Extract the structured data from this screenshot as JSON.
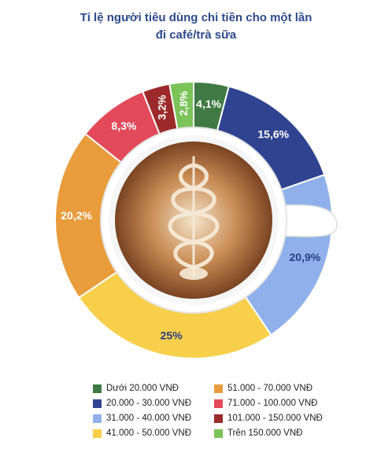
{
  "chart_data": {
    "type": "pie",
    "title_line1": "Tỉ lệ người tiêu dùng chi tiền cho một lần",
    "title_line2": "đi café/trà sữa",
    "slices": [
      {
        "label": "Dưới 20.000 VNĐ",
        "value": 4.1,
        "value_label": "4,1%",
        "color": "#3f7a44",
        "label_color": "#ffffff"
      },
      {
        "label": "20.000 - 30.000 VNĐ",
        "value": 15.6,
        "value_label": "15,6%",
        "color": "#2f4390",
        "label_color": "#ffffff"
      },
      {
        "label": "31.000 - 40.000 VNĐ",
        "value": 20.9,
        "value_label": "20,9%",
        "color": "#8fb0ea",
        "label_color": "#2a3f85"
      },
      {
        "label": "41.000 - 50.000 VNĐ",
        "value": 25,
        "value_label": "25%",
        "color": "#f7cf4a",
        "label_color": "#2a3f85"
      },
      {
        "label": "51.000 - 70.000 VNĐ",
        "value": 20.2,
        "value_label": "20,2%",
        "color": "#e89c3c",
        "label_color": "#ffffff"
      },
      {
        "label": "71.000 - 100.000 VNĐ",
        "value": 8.3,
        "value_label": "8,3%",
        "color": "#e24a5a",
        "label_color": "#ffffff"
      },
      {
        "label": "101.000 - 150.000 VNĐ",
        "value": 3.2,
        "value_label": "3,2%",
        "color": "#9c2a2a",
        "label_color": "#ffffff"
      },
      {
        "label": "Trên 150.000 VNĐ",
        "value": 2.8,
        "value_label": "2,8%",
        "color": "#7cc35a",
        "label_color": "#ffffff"
      }
    ],
    "legend_order": [
      0,
      4,
      1,
      5,
      2,
      6,
      3,
      7
    ],
    "center_image": "cappuccino-cup-icon"
  }
}
